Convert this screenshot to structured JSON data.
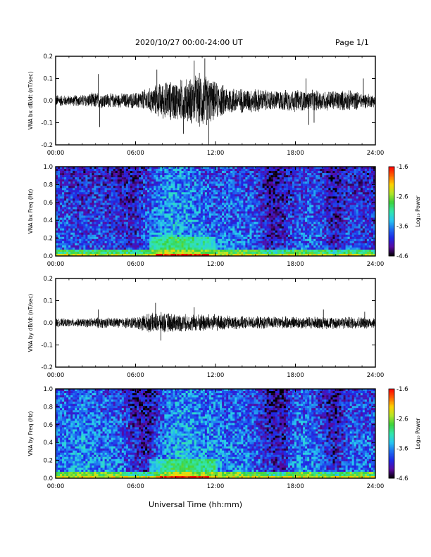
{
  "header": {
    "title": "2020/10/27  00:00-24:00 UT",
    "page": "Page 1/1"
  },
  "x_axis_title": "Universal Time (hh:mm)",
  "colors": {
    "trace": "#000000",
    "colormap": [
      "#000000",
      "#5a0aa0",
      "#1e28e6",
      "#1e6ef0",
      "#28c8f0",
      "#32e6aa",
      "#3cd23c",
      "#b4e628",
      "#ffd200",
      "#ff6400",
      "#ff0000"
    ]
  },
  "chart_data": [
    {
      "id": "panel1",
      "type": "line",
      "ylabel": "VNA bx dB/dt (nT/sec)",
      "xlim": [
        0,
        24
      ],
      "ylim": [
        -0.2,
        0.2
      ],
      "x_ticks": [
        "00:00",
        "06:00",
        "12:00",
        "18:00",
        "24:00"
      ],
      "y_ticks": [
        "0.2",
        "0.1",
        "0.0",
        "-0.1",
        "-0.2"
      ],
      "y_tick_values": [
        0.2,
        0.1,
        0.0,
        -0.1,
        -0.2
      ],
      "x_hours": [
        0,
        1,
        2,
        3,
        4,
        5,
        6,
        7,
        8,
        9,
        10,
        11,
        12,
        13,
        14,
        15,
        16,
        17,
        18,
        19,
        20,
        21,
        22,
        23,
        24
      ],
      "envelope": [
        0.03,
        0.025,
        0.03,
        0.04,
        0.035,
        0.035,
        0.04,
        0.06,
        0.09,
        0.1,
        0.11,
        0.14,
        0.09,
        0.07,
        0.06,
        0.06,
        0.05,
        0.05,
        0.055,
        0.05,
        0.05,
        0.05,
        0.05,
        0.04,
        0.03
      ],
      "spikes": [
        {
          "x": 3.2,
          "y": 0.12
        },
        {
          "x": 3.3,
          "y": -0.12
        },
        {
          "x": 7.6,
          "y": 0.14
        },
        {
          "x": 10.4,
          "y": 0.18
        },
        {
          "x": 11.2,
          "y": 0.19
        },
        {
          "x": 11.5,
          "y": -0.2
        },
        {
          "x": 9.6,
          "y": -0.15
        },
        {
          "x": 18.8,
          "y": 0.1
        },
        {
          "x": 19.4,
          "y": -0.1
        },
        {
          "x": 23.1,
          "y": 0.1
        },
        {
          "x": 19.0,
          "y": -0.11
        }
      ]
    },
    {
      "id": "panel2",
      "type": "heatmap",
      "ylabel": "VNA bx Freq (Hz)",
      "xlim": [
        0,
        24
      ],
      "ylim": [
        0.0,
        1.0
      ],
      "x_ticks": [
        "00:00",
        "06:00",
        "12:00",
        "18:00",
        "24:00"
      ],
      "y_ticks": [
        "1.0",
        "0.8",
        "0.6",
        "0.4",
        "0.2",
        "0.0"
      ],
      "y_tick_values": [
        1.0,
        0.8,
        0.6,
        0.4,
        0.2,
        0.0
      ],
      "colorbar": {
        "label": "Log₁₀ Power",
        "ticks": [
          "-1.6",
          "-2.6",
          "-3.6",
          "-4.6"
        ],
        "values": [
          -1.6,
          -2.6,
          -3.6,
          -4.6
        ],
        "range": [
          -4.6,
          -1.6
        ]
      },
      "base_level_by_hour": [
        -3.8,
        -3.8,
        -3.9,
        -3.8,
        -3.9,
        -3.9,
        -4.0,
        -3.7,
        -3.5,
        -3.4,
        -3.5,
        -3.6,
        -3.7,
        -3.6,
        -3.7,
        -3.7,
        -4.1,
        -4.0,
        -3.8,
        -3.7,
        -3.8,
        -4.1,
        -3.8,
        -3.9,
        -3.9
      ],
      "low_freq_peak": -2.0
    },
    {
      "id": "panel3",
      "type": "line",
      "ylabel": "VNA by dB/dt (nT/sec)",
      "xlim": [
        0,
        24
      ],
      "ylim": [
        -0.2,
        0.2
      ],
      "x_ticks": [
        "00:00",
        "06:00",
        "12:00",
        "18:00",
        "24:00"
      ],
      "y_ticks": [
        "0.2",
        "0.1",
        "0.0",
        "-0.1",
        "-0.2"
      ],
      "y_tick_values": [
        0.2,
        0.1,
        0.0,
        -0.1,
        -0.2
      ],
      "x_hours": [
        0,
        1,
        2,
        3,
        4,
        5,
        6,
        7,
        8,
        9,
        10,
        11,
        12,
        13,
        14,
        15,
        16,
        17,
        18,
        19,
        20,
        21,
        22,
        23,
        24
      ],
      "envelope": [
        0.02,
        0.02,
        0.02,
        0.025,
        0.025,
        0.025,
        0.03,
        0.045,
        0.05,
        0.045,
        0.04,
        0.045,
        0.04,
        0.035,
        0.03,
        0.03,
        0.03,
        0.03,
        0.03,
        0.03,
        0.03,
        0.03,
        0.03,
        0.03,
        0.025
      ],
      "spikes": [
        {
          "x": 3.2,
          "y": 0.06
        },
        {
          "x": 7.5,
          "y": 0.09
        },
        {
          "x": 7.9,
          "y": -0.08
        },
        {
          "x": 10.4,
          "y": 0.07
        },
        {
          "x": 20.1,
          "y": 0.06
        },
        {
          "x": 23.2,
          "y": 0.05
        }
      ]
    },
    {
      "id": "panel4",
      "type": "heatmap",
      "ylabel": "VNA by Freq (Hz)",
      "xlim": [
        0,
        24
      ],
      "ylim": [
        0.0,
        1.0
      ],
      "x_ticks": [
        "00:00",
        "06:00",
        "12:00",
        "18:00",
        "24:00"
      ],
      "y_ticks": [
        "1.0",
        "0.8",
        "0.6",
        "0.4",
        "0.2",
        "0.0"
      ],
      "y_tick_values": [
        1.0,
        0.8,
        0.6,
        0.4,
        0.2,
        0.0
      ],
      "colorbar": {
        "label": "Log₁₀ Power",
        "ticks": [
          "-1.6",
          "-2.6",
          "-3.6",
          "-4.6"
        ],
        "values": [
          -1.6,
          -2.6,
          -3.6,
          -4.6
        ],
        "range": [
          -4.6,
          -1.6
        ]
      },
      "base_level_by_hour": [
        -3.6,
        -3.6,
        -3.5,
        -3.6,
        -3.6,
        -3.7,
        -4.0,
        -4.1,
        -3.6,
        -3.4,
        -3.4,
        -3.5,
        -3.5,
        -3.6,
        -3.6,
        -3.7,
        -4.0,
        -4.1,
        -3.6,
        -3.6,
        -3.8,
        -4.1,
        -3.7,
        -3.7,
        -3.7
      ],
      "low_freq_peak": -2.0
    }
  ]
}
